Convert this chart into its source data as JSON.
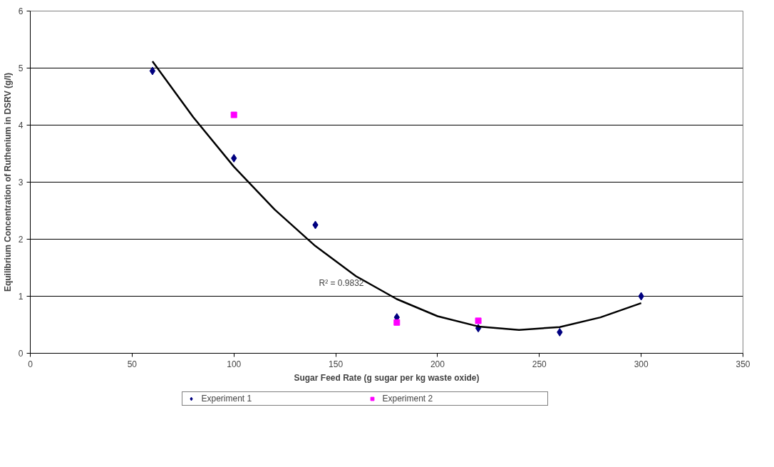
{
  "chart_data": {
    "type": "scatter",
    "xlabel": "Sugar Feed Rate (g sugar per kg waste oxide)",
    "ylabel": "Equilibrium Concentration of Ruthenium in DSRV (g/l)",
    "xlim": [
      0,
      350
    ],
    "xticks": [
      0,
      50,
      100,
      150,
      200,
      250,
      300,
      350
    ],
    "ylim": [
      0,
      6
    ],
    "yticks": [
      0,
      1,
      2,
      3,
      4,
      5,
      6
    ],
    "grid": "y",
    "legend": "bottom",
    "series": [
      {
        "name": "Experiment 1",
        "color": "#000080",
        "marker": "diamond",
        "x": [
          60,
          100,
          140,
          180,
          220,
          260,
          300
        ],
        "values": [
          4.95,
          3.42,
          2.25,
          0.63,
          0.44,
          0.37,
          1.0
        ]
      },
      {
        "name": "Experiment 2",
        "color": "#ff00ff",
        "marker": "square",
        "x": [
          100,
          180,
          220
        ],
        "values": [
          4.18,
          0.54,
          0.57
        ]
      },
      {
        "type": "line",
        "color": "#000000",
        "marker": "none",
        "x": [
          60,
          80,
          100,
          120,
          140,
          160,
          180,
          200,
          220,
          240,
          260,
          280,
          300
        ],
        "values": [
          5.12,
          4.14,
          3.27,
          2.52,
          1.88,
          1.35,
          0.95,
          0.65,
          0.47,
          0.41,
          0.46,
          0.63,
          0.88
        ]
      }
    ],
    "annotations": [
      "R² = 0.9832"
    ]
  }
}
